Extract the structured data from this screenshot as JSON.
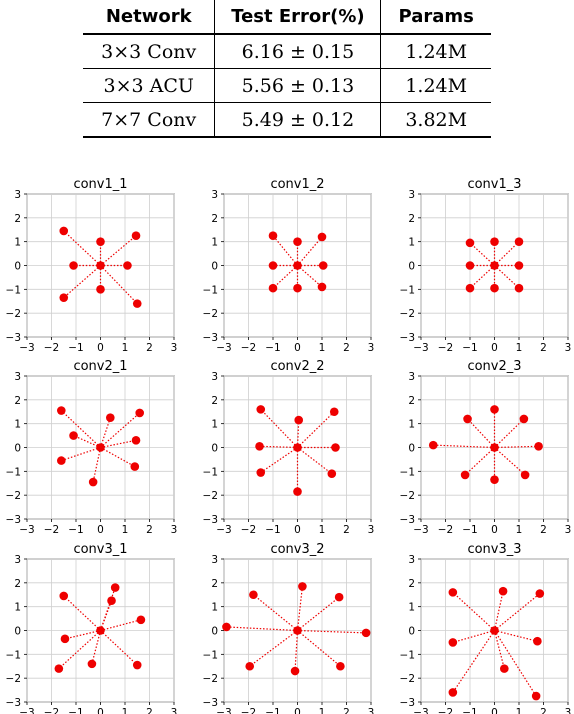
{
  "table": {
    "headers": [
      "Network",
      "Test Error(%)",
      "Params"
    ],
    "rows": [
      [
        "3×3 Conv",
        "6.16 ± 0.15",
        "1.24M"
      ],
      [
        "3×3 ACU",
        "5.56 ± 0.13",
        "1.24M"
      ],
      [
        "7×7 Conv",
        "5.49 ± 0.12",
        "3.82M"
      ]
    ]
  },
  "chart_data": [
    {
      "type": "scatter",
      "title": "conv1_1",
      "xlim": [
        -3,
        3
      ],
      "ylim": [
        -3,
        3
      ],
      "grid": true,
      "color": "#ee0000",
      "ticks": [
        -3,
        -2,
        -1,
        0,
        1,
        2,
        3
      ],
      "points": [
        [
          -1.5,
          1.45
        ],
        [
          1.45,
          1.25
        ],
        [
          -1.1,
          0.0
        ],
        [
          0.0,
          1.0
        ],
        [
          1.1,
          0.0
        ],
        [
          0.0,
          -1.0
        ],
        [
          -1.5,
          -1.35
        ],
        [
          1.5,
          -1.6
        ]
      ]
    },
    {
      "type": "scatter",
      "title": "conv1_2",
      "xlim": [
        -3,
        3
      ],
      "ylim": [
        -3,
        3
      ],
      "grid": true,
      "color": "#ee0000",
      "ticks": [
        -3,
        -2,
        -1,
        0,
        1,
        2,
        3
      ],
      "points": [
        [
          -1.0,
          1.25
        ],
        [
          0.0,
          1.0
        ],
        [
          1.0,
          1.2
        ],
        [
          -1.0,
          0.0
        ],
        [
          1.05,
          0.0
        ],
        [
          -1.0,
          -0.95
        ],
        [
          0.0,
          -0.95
        ],
        [
          1.0,
          -0.9
        ]
      ]
    },
    {
      "type": "scatter",
      "title": "conv1_3",
      "xlim": [
        -3,
        3
      ],
      "ylim": [
        -3,
        3
      ],
      "grid": true,
      "color": "#ee0000",
      "ticks": [
        -3,
        -2,
        -1,
        0,
        1,
        2,
        3
      ],
      "points": [
        [
          -1.0,
          0.95
        ],
        [
          0.0,
          1.0
        ],
        [
          1.0,
          1.0
        ],
        [
          -1.0,
          0.0
        ],
        [
          1.0,
          0.0
        ],
        [
          -1.0,
          -0.95
        ],
        [
          0.0,
          -0.95
        ],
        [
          1.0,
          -0.95
        ]
      ]
    },
    {
      "type": "scatter",
      "title": "conv2_1",
      "xlim": [
        -3,
        3
      ],
      "ylim": [
        -3,
        3
      ],
      "grid": true,
      "color": "#ee0000",
      "ticks": [
        -3,
        -2,
        -1,
        0,
        1,
        2,
        3
      ],
      "points": [
        [
          -1.6,
          1.55
        ],
        [
          0.4,
          1.25
        ],
        [
          1.6,
          1.45
        ],
        [
          -1.1,
          0.5
        ],
        [
          1.45,
          0.3
        ],
        [
          -1.6,
          -0.55
        ],
        [
          1.4,
          -0.8
        ],
        [
          -0.3,
          -1.45
        ]
      ]
    },
    {
      "type": "scatter",
      "title": "conv2_2",
      "xlim": [
        -3,
        3
      ],
      "ylim": [
        -3,
        3
      ],
      "grid": true,
      "color": "#ee0000",
      "ticks": [
        -3,
        -2,
        -1,
        0,
        1,
        2,
        3
      ],
      "points": [
        [
          -1.5,
          1.6
        ],
        [
          0.05,
          1.15
        ],
        [
          1.5,
          1.5
        ],
        [
          -1.55,
          0.05
        ],
        [
          1.55,
          0.0
        ],
        [
          -1.5,
          -1.05
        ],
        [
          1.4,
          -1.1
        ],
        [
          0.0,
          -1.85
        ]
      ]
    },
    {
      "type": "scatter",
      "title": "conv2_3",
      "xlim": [
        -3,
        3
      ],
      "ylim": [
        -3,
        3
      ],
      "grid": true,
      "color": "#ee0000",
      "ticks": [
        -3,
        -2,
        -1,
        0,
        1,
        2,
        3
      ],
      "points": [
        [
          -1.1,
          1.2
        ],
        [
          0.0,
          1.6
        ],
        [
          1.2,
          1.2
        ],
        [
          -2.5,
          0.1
        ],
        [
          1.8,
          0.05
        ],
        [
          -1.2,
          -1.15
        ],
        [
          1.25,
          -1.15
        ],
        [
          0.0,
          -1.35
        ]
      ]
    },
    {
      "type": "scatter",
      "title": "conv3_1",
      "xlim": [
        -3,
        3
      ],
      "ylim": [
        -3,
        3
      ],
      "grid": true,
      "color": "#ee0000",
      "ticks": [
        -3,
        -2,
        -1,
        0,
        1,
        2,
        3
      ],
      "points": [
        [
          -1.5,
          1.45
        ],
        [
          0.6,
          1.8
        ],
        [
          0.45,
          1.25
        ],
        [
          -1.45,
          -0.35
        ],
        [
          1.65,
          0.45
        ],
        [
          -1.7,
          -1.6
        ],
        [
          -0.35,
          -1.4
        ],
        [
          1.5,
          -1.45
        ]
      ]
    },
    {
      "type": "scatter",
      "title": "conv3_2",
      "xlim": [
        -3,
        3
      ],
      "ylim": [
        -3,
        3
      ],
      "grid": true,
      "color": "#ee0000",
      "ticks": [
        -3,
        -2,
        -1,
        0,
        1,
        2,
        3
      ],
      "points": [
        [
          -1.8,
          1.5
        ],
        [
          0.2,
          1.85
        ],
        [
          1.7,
          1.4
        ],
        [
          -2.9,
          0.15
        ],
        [
          2.8,
          -0.1
        ],
        [
          -1.95,
          -1.5
        ],
        [
          -0.1,
          -1.7
        ],
        [
          1.75,
          -1.5
        ]
      ]
    },
    {
      "type": "scatter",
      "title": "conv3_3",
      "xlim": [
        -3,
        3
      ],
      "ylim": [
        -3,
        3
      ],
      "grid": true,
      "color": "#ee0000",
      "ticks": [
        -3,
        -2,
        -1,
        0,
        1,
        2,
        3
      ],
      "points": [
        [
          -1.7,
          1.6
        ],
        [
          0.35,
          1.65
        ],
        [
          1.85,
          1.55
        ],
        [
          -1.7,
          -0.5
        ],
        [
          1.75,
          -0.45
        ],
        [
          -1.7,
          -2.6
        ],
        [
          0.4,
          -1.6
        ],
        [
          1.7,
          -2.75
        ]
      ]
    }
  ]
}
